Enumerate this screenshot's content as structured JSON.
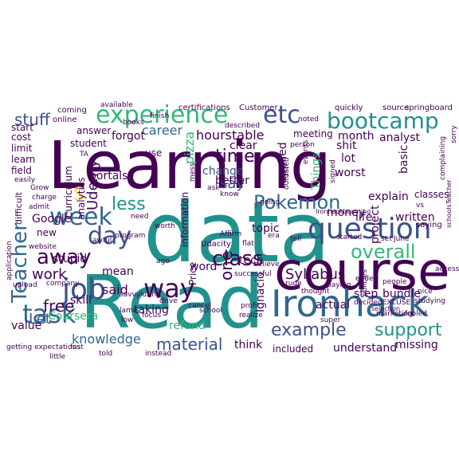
{
  "palette": {
    "background": "#ffffff",
    "dark_purple": "#440154",
    "indigo": "#3b528b",
    "blue": "#31688e",
    "teal": "#21918c",
    "green": "#35b779",
    "lime": "#90d743",
    "yellow": "#fde725"
  },
  "words": [
    {
      "text": "Learning",
      "color": "#440154",
      "orientation": "horizontal"
    },
    {
      "text": "data",
      "color": "#21918c",
      "orientation": "horizontal"
    },
    {
      "text": "Read",
      "color": "#21918c",
      "orientation": "horizontal"
    },
    {
      "text": "course",
      "color": "#440154",
      "orientation": "horizontal"
    },
    {
      "text": "Ironhack",
      "color": "#31688e",
      "orientation": "horizontal"
    },
    {
      "text": "question",
      "color": "#3b528b",
      "orientation": "horizontal"
    },
    {
      "text": "job",
      "color": "#3b528b",
      "orientation": "horizontal"
    },
    {
      "text": "way",
      "color": "#440154",
      "orientation": "horizontal"
    },
    {
      "text": "task",
      "color": "#31688e",
      "orientation": "horizontal"
    },
    {
      "text": "week",
      "color": "#31688e",
      "orientation": "horizontal"
    },
    {
      "text": "day",
      "color": "#3b528b",
      "orientation": "horizontal"
    },
    {
      "text": "experience",
      "color": "#35b779",
      "orientation": "horizontal"
    },
    {
      "text": "bootcamp",
      "color": "#21918c",
      "orientation": "horizontal"
    },
    {
      "text": "etc",
      "color": "#3b528b",
      "orientation": "horizontal"
    },
    {
      "text": "Teacher",
      "color": "#31688e",
      "orientation": "vertical"
    },
    {
      "text": "Udemy",
      "color": "#440154",
      "orientation": "vertical"
    },
    {
      "text": "away",
      "color": "#440154",
      "orientation": "horizontal"
    },
    {
      "text": "Pokemon",
      "color": "#31688e",
      "orientation": "horizontal"
    },
    {
      "text": "overall",
      "color": "#35b779",
      "orientation": "horizontal"
    },
    {
      "text": "example",
      "color": "#3b528b",
      "orientation": "horizontal"
    },
    {
      "text": "support",
      "color": "#21918c",
      "orientation": "horizontal"
    },
    {
      "text": "class",
      "color": "#440154",
      "orientation": "horizontal"
    },
    {
      "text": "time",
      "color": "#440154",
      "orientation": "horizontal"
    },
    {
      "text": "less",
      "color": "#21918c",
      "orientation": "horizontal"
    },
    {
      "text": "free",
      "color": "#440154",
      "orientation": "horizontal"
    },
    {
      "text": "material",
      "color": "#3b528b",
      "orientation": "horizontal"
    },
    {
      "text": "stuff",
      "color": "#3b528b",
      "orientation": "horizontal"
    },
    {
      "text": "work",
      "color": "#440154",
      "orientation": "horizontal"
    },
    {
      "text": "said",
      "color": "#440154",
      "orientation": "horizontal"
    },
    {
      "text": "say",
      "color": "#3b528b",
      "orientation": "horizontal"
    },
    {
      "text": "one",
      "color": "#440154",
      "orientation": "vertical"
    },
    {
      "text": "knowledge",
      "color": "#31688e",
      "orientation": "horizontal"
    },
    {
      "text": "Syllabus",
      "color": "#440154",
      "orientation": "horizontal"
    },
    {
      "text": "career",
      "color": "#31688e",
      "orientation": "horizontal"
    },
    {
      "text": "hourstable",
      "color": "#440154",
      "orientation": "horizontal"
    },
    {
      "text": "pizza",
      "color": "#35b779",
      "orientation": "vertical"
    },
    {
      "text": "S",
      "color": "#fde725",
      "orientation": "horizontal"
    },
    {
      "text": "Let",
      "color": "#3b528b",
      "orientation": "horizontal"
    },
    {
      "text": "Coursera",
      "color": "#35b779",
      "orientation": "horizontal"
    },
    {
      "text": "value",
      "color": "#440154",
      "orientation": "horizontal"
    },
    {
      "text": "Ignacio",
      "color": "#440154",
      "orientation": "vertical"
    },
    {
      "text": "refund",
      "color": "#35b779",
      "orientation": "horizontal"
    },
    {
      "text": "taking",
      "color": "#440154",
      "orientation": "horizontal"
    },
    {
      "text": "skill",
      "color": "#440154",
      "orientation": "horizontal"
    },
    {
      "text": "mean",
      "color": "#440154",
      "orientation": "horizontal"
    },
    {
      "text": "stupid",
      "color": "#440154",
      "orientation": "horizontal"
    },
    {
      "text": "new",
      "color": "#440154",
      "orientation": "horizontal"
    },
    {
      "text": "Google",
      "color": "#440154",
      "orientation": "horizontal"
    },
    {
      "text": "portals",
      "color": "#440154",
      "orientation": "horizontal"
    },
    {
      "text": "change",
      "color": "#3b528b",
      "orientation": "horizontal"
    },
    {
      "text": "better",
      "color": "#440154",
      "orientation": "horizontal"
    },
    {
      "text": "applied",
      "color": "#440154",
      "orientation": "vertical"
    },
    {
      "text": "Things",
      "color": "#35b779",
      "orientation": "vertical"
    },
    {
      "text": "money",
      "color": "#440154",
      "orientation": "horizontal"
    },
    {
      "text": "explain",
      "color": "#440154",
      "orientation": "horizontal"
    },
    {
      "text": "life",
      "color": "#440154",
      "orientation": "horizontal"
    },
    {
      "text": "written",
      "color": "#440154",
      "orientation": "horizontal"
    },
    {
      "text": "topic",
      "color": "#440154",
      "orientation": "horizontal"
    },
    {
      "text": "tech",
      "color": "#440154",
      "orientation": "horizontal"
    },
    {
      "text": "word",
      "color": "#440154",
      "orientation": "horizontal"
    },
    {
      "text": "bundle",
      "color": "#440154",
      "orientation": "horizontal"
    },
    {
      "text": "step",
      "color": "#440154",
      "orientation": "horizontal"
    },
    {
      "text": "actual",
      "color": "#440154",
      "orientation": "horizontal"
    },
    {
      "text": "missing",
      "color": "#440154",
      "orientation": "horizontal"
    },
    {
      "text": "understand",
      "color": "#440154",
      "orientation": "horizontal"
    },
    {
      "text": "included",
      "color": "#440154",
      "orientation": "horizontal"
    },
    {
      "text": "think",
      "color": "#440154",
      "orientation": "horizontal"
    },
    {
      "text": "clear",
      "color": "#440154",
      "orientation": "horizontal"
    },
    {
      "text": "lot",
      "color": "#440154",
      "orientation": "horizontal"
    },
    {
      "text": "worst",
      "color": "#440154",
      "orientation": "horizontal"
    },
    {
      "text": "month",
      "color": "#440154",
      "orientation": "horizontal"
    },
    {
      "text": "analyst",
      "color": "#440154",
      "orientation": "horizontal"
    },
    {
      "text": "basic",
      "color": "#440154",
      "orientation": "vertical"
    },
    {
      "text": "classes",
      "color": "#440154",
      "orientation": "horizontal"
    },
    {
      "text": "project",
      "color": "#440154",
      "orientation": "vertical"
    },
    {
      "text": "shit",
      "color": "#440154",
      "orientation": "horizontal"
    },
    {
      "text": "information",
      "color": "#440154",
      "orientation": "vertical"
    },
    {
      "text": "Price",
      "color": "#440154",
      "orientation": "vertical"
    },
    {
      "text": "forgot",
      "color": "#440154",
      "orientation": "horizontal"
    },
    {
      "text": "answer",
      "color": "#440154",
      "orientation": "horizontal"
    },
    {
      "text": "student",
      "color": "#440154",
      "orientation": "horizontal"
    },
    {
      "text": "Curriculum",
      "color": "#440154",
      "orientation": "vertical"
    },
    {
      "text": "analytics",
      "color": "#440154",
      "orientation": "vertical"
    },
    {
      "text": "limit",
      "color": "#440154",
      "orientation": "horizontal"
    },
    {
      "text": "learn",
      "color": "#440154",
      "orientation": "horizontal"
    },
    {
      "text": "field",
      "color": "#440154",
      "orientation": "horizontal"
    },
    {
      "text": "difficult",
      "color": "#440154",
      "orientation": "vertical"
    },
    {
      "text": "cost",
      "color": "#440154",
      "orientation": "horizontal"
    },
    {
      "text": "start",
      "color": "#440154",
      "orientation": "horizontal"
    },
    {
      "text": "use",
      "color": "#440154",
      "orientation": "horizontal"
    },
    {
      "text": "meeting",
      "color": "#440154",
      "orientation": "horizontal"
    },
    {
      "text": "Udacity",
      "color": "#440154",
      "orientation": "horizontal"
    },
    {
      "text": "saying",
      "color": "#440154",
      "orientation": "horizontal"
    },
    {
      "text": "certifications",
      "color": "#440154",
      "orientation": "horizontal"
    },
    {
      "text": "Customer",
      "color": "#440154",
      "orientation": "horizontal"
    },
    {
      "text": "springboard",
      "color": "#440154",
      "orientation": "horizontal"
    },
    {
      "text": "source",
      "color": "#440154",
      "orientation": "horizontal"
    },
    {
      "text": "quickly",
      "color": "#440154",
      "orientation": "horizontal"
    },
    {
      "text": "coming",
      "color": "#440154",
      "orientation": "horizontal"
    },
    {
      "text": "online",
      "color": "#440154",
      "orientation": "horizontal"
    },
    {
      "text": "application",
      "color": "#440154",
      "orientation": "vertical"
    },
    {
      "text": "getting expectations",
      "color": "#440154",
      "orientation": "horizontal"
    },
    {
      "text": "company",
      "color": "#440154",
      "orientation": "horizontal"
    },
    {
      "text": "website",
      "color": "#440154",
      "orientation": "horizontal"
    },
    {
      "text": "upload",
      "color": "#440154",
      "orientation": "horizontal"
    },
    {
      "text": "little",
      "color": "#440154",
      "orientation": "horizontal"
    },
    {
      "text": "fast",
      "color": "#440154",
      "orientation": "horizontal"
    },
    {
      "text": "Grow",
      "color": "#440154",
      "orientation": "horizontal"
    },
    {
      "text": "charge",
      "color": "#440154",
      "orientation": "horizontal"
    },
    {
      "text": "admit",
      "color": "#440154",
      "orientation": "horizontal"
    },
    {
      "text": "easily",
      "color": "#440154",
      "orientation": "horizontal"
    },
    {
      "text": "books",
      "color": "#440154",
      "orientation": "horizontal"
    },
    {
      "text": "finish",
      "color": "#440154",
      "orientation": "horizontal"
    },
    {
      "text": "awful",
      "color": "#440154",
      "orientation": "horizontal"
    },
    {
      "text": "program",
      "color": "#440154",
      "orientation": "horizontal"
    },
    {
      "text": "worth",
      "color": "#440154",
      "orientation": "horizontal"
    },
    {
      "text": "need",
      "color": "#440154",
      "orientation": "horizontal"
    },
    {
      "text": "ago",
      "color": "#440154",
      "orientation": "horizontal"
    },
    {
      "text": "Affirm",
      "color": "#440154",
      "orientation": "horizontal"
    },
    {
      "text": "flat",
      "color": "#440154",
      "orientation": "horizontal"
    },
    {
      "text": "era",
      "color": "#440154",
      "orientation": "horizontal"
    },
    {
      "text": "tell",
      "color": "#440154",
      "orientation": "horizontal"
    },
    {
      "text": "believe",
      "color": "#440154",
      "orientation": "horizontal"
    },
    {
      "text": "rude",
      "color": "#440154",
      "orientation": "horizontal"
    },
    {
      "text": "thought",
      "color": "#440154",
      "orientation": "horizontal"
    },
    {
      "text": "ended",
      "color": "#440154",
      "orientation": "horizontal"
    },
    {
      "text": "nice",
      "color": "#440154",
      "orientation": "horizontal"
    },
    {
      "text": "studying",
      "color": "#440154",
      "orientation": "horizontal"
    },
    {
      "text": "decidedEXCUSE",
      "color": "#440154",
      "orientation": "horizontal"
    },
    {
      "text": "fooled",
      "color": "#440154",
      "orientation": "horizontal"
    },
    {
      "text": "super",
      "color": "#440154",
      "orientation": "horizontal"
    },
    {
      "text": "marketing",
      "color": "#440154",
      "orientation": "horizontal"
    },
    {
      "text": "people",
      "color": "#440154",
      "orientation": "horizontal"
    },
    {
      "text": "focus",
      "color": "#440154",
      "orientation": "horizontal"
    },
    {
      "text": "lame",
      "color": "#440154",
      "orientation": "horizontal"
    },
    {
      "text": "low",
      "color": "#440154",
      "orientation": "horizontal"
    },
    {
      "text": "told",
      "color": "#440154",
      "orientation": "horizontal"
    },
    {
      "text": "instead",
      "color": "#440154",
      "orientation": "horizontal"
    },
    {
      "text": "drive",
      "color": "#440154",
      "orientation": "horizontal"
    },
    {
      "text": "profit",
      "color": "#440154",
      "orientation": "horizontal"
    },
    {
      "text": "cancel",
      "color": "#440154",
      "orientation": "horizontal"
    },
    {
      "text": "savvy",
      "color": "#440154",
      "orientation": "horizontal"
    },
    {
      "text": "luring",
      "color": "#440154",
      "orientation": "horizontal"
    },
    {
      "text": "school",
      "color": "#440154",
      "orientation": "horizontal"
    },
    {
      "text": "realize",
      "color": "#440154",
      "orientation": "horizontal"
    },
    {
      "text": "successful",
      "color": "#440154",
      "orientation": "horizontal"
    },
    {
      "text": "paying",
      "color": "#440154",
      "orientation": "horizontal"
    },
    {
      "text": "access",
      "color": "#440154",
      "orientation": "horizontal"
    },
    {
      "text": "selection",
      "color": "#440154",
      "orientation": "horizontal"
    },
    {
      "text": "policies",
      "color": "#440154",
      "orientation": "vertical"
    },
    {
      "text": "June",
      "color": "#440154",
      "orientation": "horizontal"
    },
    {
      "text": "set",
      "color": "#440154",
      "orientation": "horizontal"
    },
    {
      "text": "started",
      "color": "#440154",
      "orientation": "horizontal"
    },
    {
      "text": "going",
      "color": "#440154",
      "orientation": "horizontal"
    },
    {
      "text": "events",
      "color": "#440154",
      "orientation": "vertical"
    },
    {
      "text": "noted",
      "color": "#440154",
      "orientation": "horizontal"
    },
    {
      "text": "person",
      "color": "#440154",
      "orientation": "horizontal"
    },
    {
      "text": "signed",
      "color": "#440154",
      "orientation": "vertical"
    },
    {
      "text": "described",
      "color": "#440154",
      "orientation": "horizontal"
    },
    {
      "text": "ask",
      "color": "#440154",
      "orientation": "horizontal"
    },
    {
      "text": "know",
      "color": "#440154",
      "orientation": "horizontal"
    },
    {
      "text": "mess",
      "color": "#440154",
      "orientation": "vertical"
    },
    {
      "text": "complaining",
      "color": "#440154",
      "orientation": "vertical"
    },
    {
      "text": "sorry",
      "color": "#440154",
      "orientation": "vertical"
    },
    {
      "text": "IronhackLearning",
      "color": "#440154",
      "orientation": "horizontal"
    },
    {
      "text": "schoolsTeacher",
      "color": "#440154",
      "orientation": "vertical"
    },
    {
      "text": "outdated",
      "color": "#440154",
      "orientation": "vertical"
    },
    {
      "text": "TA",
      "color": "#440154",
      "orientation": "horizontal"
    },
    {
      "text": "vs",
      "color": "#440154",
      "orientation": "horizontal"
    },
    {
      "text": "available",
      "color": "#440154",
      "orientation": "horizontal"
    }
  ]
}
